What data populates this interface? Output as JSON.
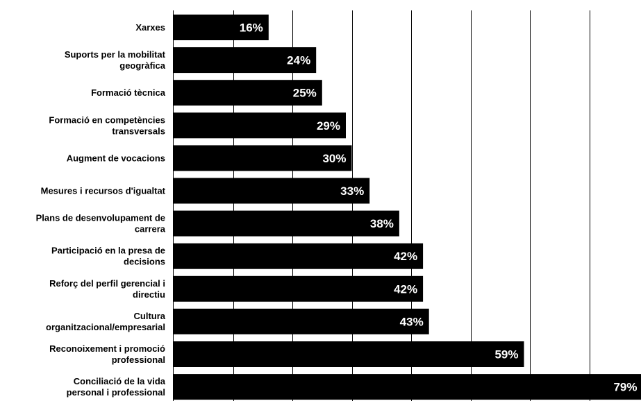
{
  "chart_data": {
    "type": "bar",
    "orientation": "horizontal",
    "categories": [
      "Xarxes",
      "Suports per la mobilitat geogràfica",
      "Formació tècnica",
      "Formació en competències transversals",
      "Augment de vocacions",
      "Mesures i recursos d'igualtat",
      "Plans de desenvolupament de carrera",
      "Participació en la presa de decisions",
      "Reforç del perfil gerencial i directiu",
      "Cultura organitzacional/empresarial",
      "Reconoixement i promoció professional",
      "Conciliació de la vida personal i professional"
    ],
    "category_lines": [
      [
        "Xarxes"
      ],
      [
        "Suports per la mobilitat",
        "geogràfica"
      ],
      [
        "Formació tècnica"
      ],
      [
        "Formació en competències",
        "transversals"
      ],
      [
        "Augment de vocacions"
      ],
      [
        "Mesures i recursos d'igualtat"
      ],
      [
        "Plans de desenvolupament de",
        "carrera"
      ],
      [
        "Participació en la presa de",
        "decisions"
      ],
      [
        "Reforç del perfil gerencial i",
        "directiu"
      ],
      [
        "Cultura",
        "organitzacional/empresarial"
      ],
      [
        "Reconoixement i promoció",
        "professional"
      ],
      [
        "Conciliació de la vida",
        "personal i professional"
      ]
    ],
    "values": [
      16,
      24,
      25,
      29,
      30,
      33,
      38,
      42,
      42,
      43,
      59,
      79
    ],
    "value_labels": [
      "16%",
      "24%",
      "25%",
      "29%",
      "30%",
      "33%",
      "38%",
      "42%",
      "42%",
      "43%",
      "59%",
      "79%"
    ],
    "xlim": [
      0,
      80
    ],
    "grid": true,
    "bar_color": "#000000",
    "value_label_color": "#ffffff",
    "gridline_color": "#000000"
  }
}
